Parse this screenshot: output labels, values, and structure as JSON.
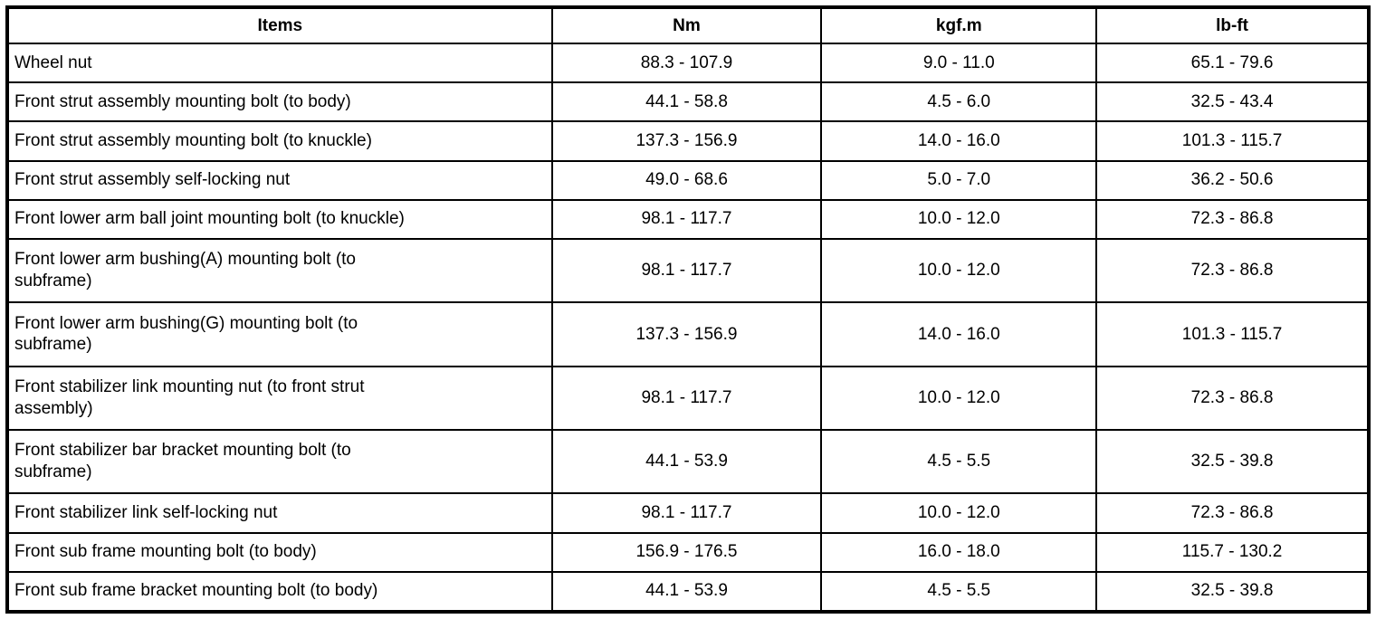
{
  "table": {
    "headers": {
      "items": "Items",
      "nm": "Nm",
      "kgfm": "kgf.m",
      "lbft": "lb-ft"
    },
    "rows": [
      {
        "item": "Wheel nut",
        "nm": "88.3 - 107.9",
        "kgfm": "9.0 - 11.0",
        "lbft": "65.1 - 79.6",
        "wrap": false
      },
      {
        "item": "Front strut assembly mounting bolt (to body)",
        "nm": "44.1 - 58.8",
        "kgfm": "4.5 - 6.0",
        "lbft": "32.5 - 43.4",
        "wrap": false
      },
      {
        "item": "Front strut assembly mounting bolt (to knuckle)",
        "nm": "137.3 - 156.9",
        "kgfm": "14.0 - 16.0",
        "lbft": "101.3 - 115.7",
        "wrap": false
      },
      {
        "item": "Front strut assembly self-locking nut",
        "nm": "49.0 - 68.6",
        "kgfm": "5.0 - 7.0",
        "lbft": "36.2 - 50.6",
        "wrap": false
      },
      {
        "item": "Front lower arm ball joint mounting bolt (to knuckle)",
        "nm": "98.1 - 117.7",
        "kgfm": "10.0 - 12.0",
        "lbft": "72.3 - 86.8",
        "wrap": false
      },
      {
        "item": "Front lower arm bushing(A) mounting bolt (to\nsubframe)",
        "nm": "98.1 - 117.7",
        "kgfm": "10.0 - 12.0",
        "lbft": "72.3 - 86.8",
        "wrap": true
      },
      {
        "item": "Front lower arm bushing(G) mounting bolt (to\nsubframe)",
        "nm": "137.3 - 156.9",
        "kgfm": "14.0 - 16.0",
        "lbft": "101.3 - 115.7",
        "wrap": true
      },
      {
        "item": "Front stabilizer link mounting nut (to front strut\nassembly)",
        "nm": "98.1 - 117.7",
        "kgfm": "10.0 - 12.0",
        "lbft": "72.3 - 86.8",
        "wrap": true
      },
      {
        "item": "Front stabilizer bar bracket mounting bolt (to\nsubframe)",
        "nm": "44.1 - 53.9",
        "kgfm": "4.5 - 5.5",
        "lbft": "32.5 - 39.8",
        "wrap": true
      },
      {
        "item": "Front stabilizer link self-locking nut",
        "nm": "98.1 - 117.7",
        "kgfm": "10.0 - 12.0",
        "lbft": "72.3 - 86.8",
        "wrap": false
      },
      {
        "item": "Front sub frame mounting bolt (to body)",
        "nm": "156.9 - 176.5",
        "kgfm": "16.0 - 18.0",
        "lbft": "115.7 - 130.2",
        "wrap": false
      },
      {
        "item": "Front sub frame bracket mounting bolt (to body)",
        "nm": "44.1 - 53.9",
        "kgfm": "4.5 - 5.5",
        "lbft": "32.5 - 39.8",
        "wrap": false
      }
    ]
  },
  "colors": {
    "border": "#000000",
    "background": "#ffffff",
    "text": "#000000"
  }
}
